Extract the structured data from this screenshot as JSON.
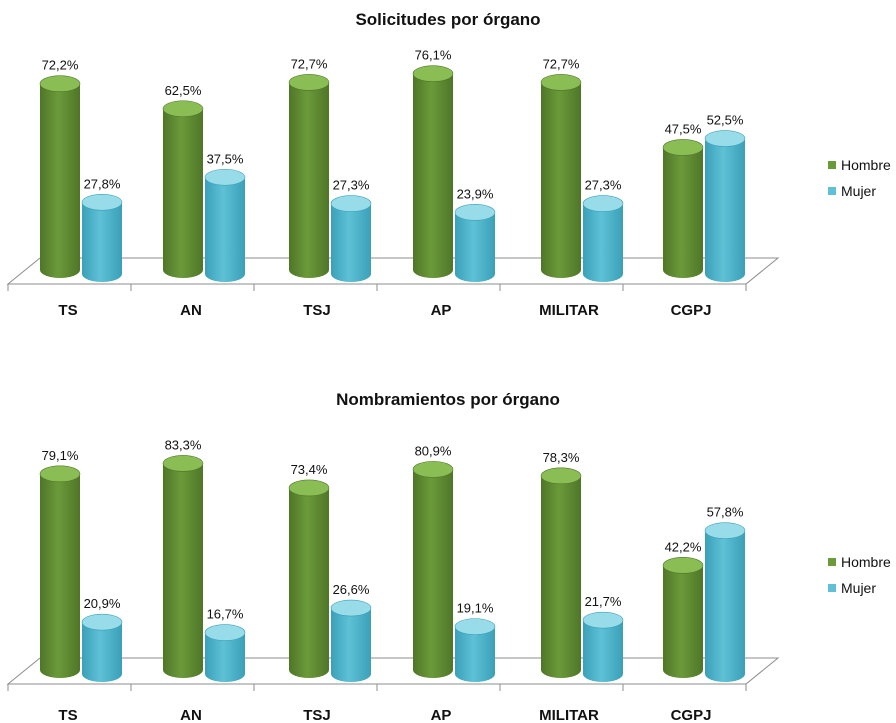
{
  "colors": {
    "Hombre": "#6b9a3a",
    "Mujer": "#5ec1d6"
  },
  "chart_data": [
    {
      "type": "bar",
      "title": "Solicitudes por órgano",
      "categories": [
        "TS",
        "AN",
        "TSJ",
        "AP",
        "MILITAR",
        "CGPJ"
      ],
      "series": [
        {
          "name": "Hombre",
          "values": [
            72.2,
            62.5,
            72.7,
            76.1,
            72.7,
            47.5
          ],
          "labels": [
            "72,2%",
            "62,5%",
            "72,7%",
            "76,1%",
            "72,7%",
            "47,5%"
          ]
        },
        {
          "name": "Mujer",
          "values": [
            27.8,
            37.5,
            27.3,
            23.9,
            27.3,
            52.5
          ],
          "labels": [
            "27,8%",
            "37,5%",
            "27,3%",
            "23,9%",
            "27,3%",
            "52,5%"
          ]
        }
      ],
      "ylim": [
        0,
        100
      ],
      "legend_position": "right",
      "grid": false
    },
    {
      "type": "bar",
      "title": "Nombramientos por órgano",
      "categories": [
        "TS",
        "AN",
        "TSJ",
        "AP",
        "MILITAR",
        "CGPJ"
      ],
      "series": [
        {
          "name": "Hombre",
          "values": [
            79.1,
            83.3,
            73.4,
            80.9,
            78.3,
            42.2
          ],
          "labels": [
            "79,1%",
            "83,3%",
            "73,4%",
            "80,9%",
            "78,3%",
            "42,2%"
          ]
        },
        {
          "name": "Mujer",
          "values": [
            20.9,
            16.7,
            26.6,
            19.1,
            21.7,
            57.8
          ],
          "labels": [
            "20,9%",
            "16,7%",
            "26,6%",
            "19,1%",
            "21,7%",
            "57,8%"
          ]
        }
      ],
      "ylim": [
        0,
        100
      ],
      "legend_position": "right",
      "grid": false
    }
  ]
}
